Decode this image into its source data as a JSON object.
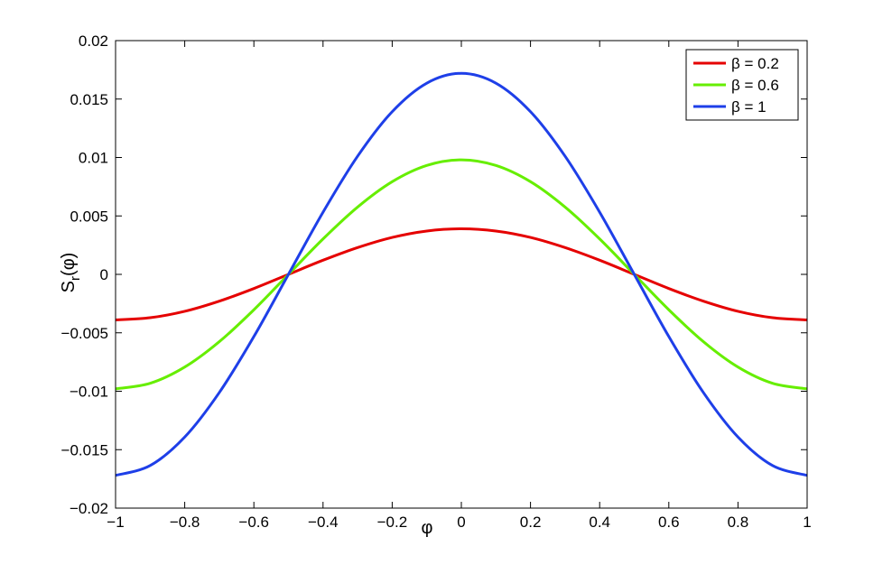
{
  "chart_data": {
    "type": "line",
    "title": "",
    "xlabel": "φ",
    "ylabel_main": "S",
    "ylabel_sub": "r",
    "ylabel_tail": "(φ)",
    "xlim": [
      -1,
      1
    ],
    "ylim": [
      -0.02,
      0.02
    ],
    "xticks": [
      -1,
      -0.8,
      -0.6,
      -0.4,
      -0.2,
      0,
      0.2,
      0.4,
      0.6,
      0.8,
      1
    ],
    "xtick_labels": [
      "−1",
      "−0.8",
      "−0.6",
      "−0.4",
      "−0.2",
      "0",
      "0.2",
      "0.4",
      "0.6",
      "0.8",
      "1"
    ],
    "yticks": [
      -0.02,
      -0.015,
      -0.01,
      -0.005,
      0,
      0.005,
      0.01,
      0.015,
      0.02
    ],
    "ytick_labels": [
      "−0.02",
      "−0.015",
      "−0.01",
      "−0.005",
      "0",
      "0.005",
      "0.01",
      "0.015",
      "0.02"
    ],
    "grid": false,
    "legend_position": "top-right",
    "x": [
      -1,
      -0.9,
      -0.8,
      -0.7,
      -0.6,
      -0.5,
      -0.4,
      -0.3,
      -0.2,
      -0.1,
      0,
      0.1,
      0.2,
      0.3,
      0.4,
      0.5,
      0.6,
      0.7,
      0.8,
      0.9,
      1
    ],
    "series": [
      {
        "name": "β = 0.2",
        "color": "#e50000",
        "values": [
          -0.0039,
          -0.00371,
          -0.00316,
          -0.00229,
          -0.00121,
          0,
          0.00121,
          0.00229,
          0.00316,
          0.00371,
          0.0039,
          0.00371,
          0.00316,
          0.00229,
          0.00121,
          0,
          -0.00121,
          -0.00229,
          -0.00316,
          -0.00371,
          -0.0039
        ]
      },
      {
        "name": "β = 0.6",
        "color": "#66ee00",
        "values": [
          -0.0098,
          -0.00932,
          -0.00793,
          -0.00576,
          -0.00303,
          0,
          0.00303,
          0.00576,
          0.00793,
          0.00932,
          0.0098,
          0.00932,
          0.00793,
          0.00576,
          0.00303,
          0,
          -0.00303,
          -0.00576,
          -0.00793,
          -0.00932,
          -0.0098
        ]
      },
      {
        "name": "β = 1",
        "color": "#1e3fe8",
        "values": [
          -0.0172,
          -0.01636,
          -0.01392,
          -0.01011,
          -0.00532,
          0,
          0.00532,
          0.01011,
          0.01392,
          0.01636,
          0.0172,
          0.01636,
          0.01392,
          0.01011,
          0.00532,
          0,
          -0.00532,
          -0.01011,
          -0.01392,
          -0.01636,
          -0.0172
        ]
      }
    ]
  }
}
